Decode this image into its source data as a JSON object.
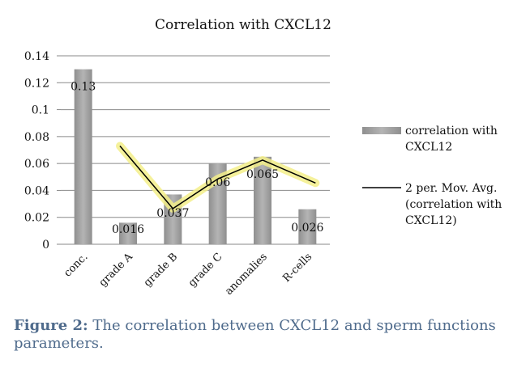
{
  "chart_data": {
    "type": "bar",
    "title": "Correlation with CXCL12",
    "categories": [
      "conc.",
      "grade A",
      "grade B",
      "grade C",
      "anomalies",
      "R-cells"
    ],
    "series": [
      {
        "name": "correlation with CXCL12",
        "values": [
          0.13,
          0.016,
          0.037,
          0.06,
          0.065,
          0.026
        ],
        "data_labels": [
          "0.13",
          "0.016",
          "0.037",
          "0.06",
          "0.065",
          "0.026"
        ],
        "color": "#9e9e9e"
      }
    ],
    "trendline": {
      "name": "2 per. Mov. Avg. (correlation with CXCL12)",
      "type": "moving-average",
      "period": 2,
      "x": [
        "grade A",
        "grade B",
        "grade C",
        "anomalies",
        "R-cells"
      ],
      "values": [
        0.073,
        0.0265,
        0.0485,
        0.0625,
        0.0455
      ],
      "color": "#000000",
      "highlight_color": "#f3ef8a"
    },
    "ylim": [
      0,
      0.14
    ],
    "yticks": [
      "0",
      "0.02",
      "0.04",
      "0.06",
      "0.08",
      "0.1",
      "0.12",
      "0.14"
    ],
    "grid": true,
    "legend": "right",
    "legend_entries": [
      {
        "kind": "bar",
        "lines": [
          "correlation with",
          "CXCL12"
        ]
      },
      {
        "kind": "line",
        "lines": [
          "2 per. Mov. Avg.",
          "(correlation with",
          "CXCL12)"
        ]
      }
    ]
  },
  "caption": {
    "label": "Figure 2:",
    "text": " The correlation between CXCL12 and sperm functions parameters."
  }
}
